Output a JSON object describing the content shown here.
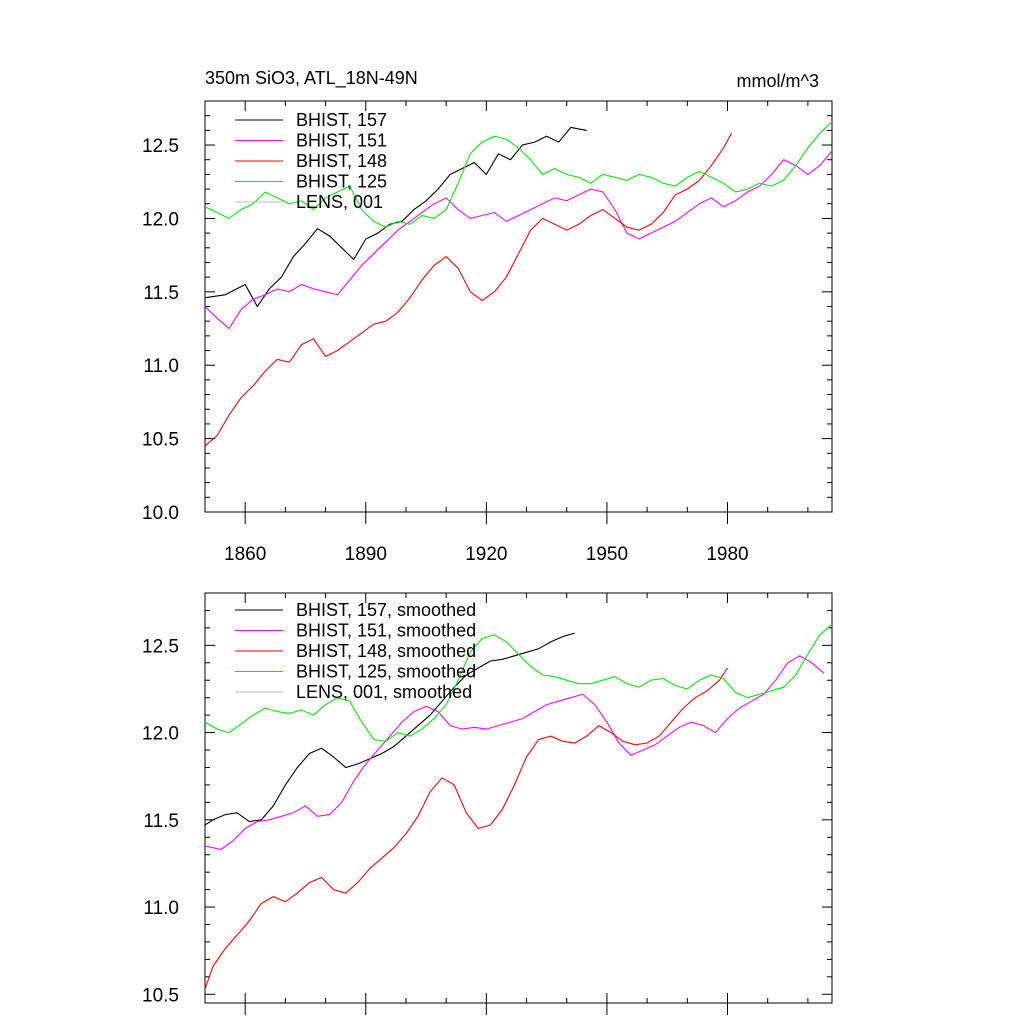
{
  "figure": {
    "title_left": "350m SiO3, ATL_18N-49N",
    "title_right": "mmol/m^3"
  },
  "chart_data": [
    {
      "type": "line",
      "title": "350m SiO3, ATL_18N-49N",
      "units": "mmol/m^3",
      "xlim": [
        1850,
        2006
      ],
      "ylim": [
        10.0,
        12.8
      ],
      "xticks": [
        1860,
        1890,
        1920,
        1950,
        1980
      ],
      "yticks": [
        10.0,
        10.5,
        11.0,
        11.5,
        12.0,
        12.5
      ],
      "legend_position": "top-left",
      "series": [
        {
          "name": "BHIST, 157",
          "color": "#000000",
          "x": [
            1850,
            1855,
            1860,
            1863,
            1866,
            1869,
            1872,
            1875,
            1878,
            1881,
            1884,
            1887,
            1890,
            1893,
            1896,
            1899,
            1902,
            1905,
            1908,
            1911,
            1914,
            1917,
            1920,
            1923,
            1926,
            1929,
            1932,
            1935,
            1938,
            1941,
            1945
          ],
          "y": [
            11.46,
            11.48,
            11.55,
            11.4,
            11.52,
            11.6,
            11.74,
            11.83,
            11.93,
            11.88,
            11.8,
            11.72,
            11.86,
            11.9,
            11.96,
            11.98,
            12.06,
            12.12,
            12.2,
            12.3,
            12.34,
            12.38,
            12.3,
            12.44,
            12.4,
            12.5,
            12.52,
            12.56,
            12.52,
            12.62,
            12.6
          ]
        },
        {
          "name": "BHIST, 151",
          "color": "#ff00ff",
          "x": [
            1850,
            1853,
            1856,
            1859,
            1862,
            1865,
            1868,
            1871,
            1874,
            1877,
            1880,
            1883,
            1886,
            1889,
            1892,
            1895,
            1898,
            1901,
            1904,
            1907,
            1910,
            1913,
            1916,
            1919,
            1922,
            1925,
            1928,
            1931,
            1934,
            1937,
            1940,
            1943,
            1946,
            1949,
            1952,
            1955,
            1958,
            1961,
            1964,
            1967,
            1970,
            1973,
            1976,
            1979,
            1982,
            1985,
            1988,
            1991,
            1994,
            1997,
            2000,
            2003,
            2006
          ],
          "y": [
            11.4,
            11.32,
            11.25,
            11.38,
            11.45,
            11.48,
            11.52,
            11.5,
            11.55,
            11.52,
            11.5,
            11.48,
            11.58,
            11.68,
            11.76,
            11.84,
            11.92,
            11.98,
            12.04,
            12.1,
            12.14,
            12.06,
            12.0,
            12.02,
            12.04,
            11.98,
            12.02,
            12.06,
            12.1,
            12.14,
            12.12,
            12.16,
            12.2,
            12.18,
            12.06,
            11.9,
            11.86,
            11.9,
            11.94,
            11.98,
            12.04,
            12.1,
            12.14,
            12.08,
            12.12,
            12.18,
            12.22,
            12.3,
            12.4,
            12.36,
            12.3,
            12.36,
            12.46
          ]
        },
        {
          "name": "BHIST, 148",
          "color": "#ff0000",
          "x": [
            1850,
            1853,
            1856,
            1859,
            1862,
            1865,
            1868,
            1871,
            1874,
            1877,
            1880,
            1883,
            1886,
            1889,
            1892,
            1895,
            1898,
            1901,
            1904,
            1907,
            1910,
            1913,
            1916,
            1919,
            1922,
            1925,
            1928,
            1931,
            1934,
            1937,
            1940,
            1943,
            1946,
            1949,
            1952,
            1955,
            1958,
            1961,
            1964,
            1967,
            1970,
            1973,
            1976,
            1979,
            1981
          ],
          "y": [
            10.45,
            10.52,
            10.66,
            10.78,
            10.86,
            10.96,
            11.04,
            11.02,
            11.14,
            11.18,
            11.06,
            11.1,
            11.16,
            11.22,
            11.28,
            11.3,
            11.36,
            11.46,
            11.58,
            11.68,
            11.74,
            11.66,
            11.5,
            11.44,
            11.5,
            11.6,
            11.76,
            11.92,
            12.0,
            11.96,
            11.92,
            11.96,
            12.02,
            12.06,
            12.0,
            11.94,
            11.92,
            11.96,
            12.04,
            12.16,
            12.2,
            12.26,
            12.36,
            12.48,
            12.58
          ]
        },
        {
          "name": "BHIST, 125",
          "color": "#00ee00",
          "x": [
            1850,
            1853,
            1856,
            1859,
            1862,
            1865,
            1868,
            1871,
            1874,
            1877,
            1880,
            1883,
            1886,
            1889,
            1892,
            1895,
            1898,
            1901,
            1904,
            1907,
            1910,
            1913,
            1916,
            1919,
            1922,
            1925,
            1928,
            1931,
            1934,
            1937,
            1940,
            1943,
            1946,
            1949,
            1952,
            1955,
            1958,
            1961,
            1964,
            1967,
            1970,
            1973,
            1976,
            1979,
            1982,
            1985,
            1988,
            1991,
            1994,
            1997,
            2000,
            2003,
            2006
          ],
          "y": [
            12.08,
            12.04,
            12.0,
            12.06,
            12.1,
            12.18,
            12.14,
            12.1,
            12.12,
            12.06,
            12.14,
            12.18,
            12.22,
            12.06,
            11.98,
            11.94,
            11.98,
            11.96,
            12.02,
            12.0,
            12.06,
            12.24,
            12.44,
            12.52,
            12.56,
            12.54,
            12.48,
            12.4,
            12.3,
            12.34,
            12.3,
            12.28,
            12.24,
            12.3,
            12.28,
            12.26,
            12.3,
            12.28,
            12.24,
            12.22,
            12.28,
            12.32,
            12.28,
            12.24,
            12.18,
            12.2,
            12.24,
            12.22,
            12.26,
            12.36,
            12.48,
            12.58,
            12.66
          ]
        },
        {
          "name": "LENS, 001",
          "color": "#bbbbbb",
          "x": [],
          "y": []
        }
      ]
    },
    {
      "type": "line",
      "xlim": [
        1850,
        2006
      ],
      "ylim": [
        10.45,
        12.8
      ],
      "xticks": [
        1860,
        1890,
        1920,
        1950,
        1980
      ],
      "yticks": [
        10.5,
        11.0,
        11.5,
        12.0,
        12.5
      ],
      "legend_position": "top-left",
      "series": [
        {
          "name": "BHIST, 157, smoothed",
          "color": "#000000",
          "x": [
            1850,
            1852,
            1855,
            1858,
            1861,
            1864,
            1867,
            1870,
            1873,
            1876,
            1879,
            1882,
            1885,
            1888,
            1891,
            1894,
            1897,
            1900,
            1903,
            1906,
            1909,
            1912,
            1915,
            1918,
            1921,
            1924,
            1927,
            1930,
            1933,
            1936,
            1939,
            1942
          ],
          "y": [
            11.47,
            11.5,
            11.53,
            11.54,
            11.49,
            11.5,
            11.58,
            11.7,
            11.8,
            11.88,
            11.91,
            11.86,
            11.8,
            11.82,
            11.85,
            11.88,
            11.92,
            11.98,
            12.04,
            12.1,
            12.18,
            12.26,
            12.33,
            12.37,
            12.41,
            12.42,
            12.44,
            12.46,
            12.48,
            12.52,
            12.55,
            12.57
          ]
        },
        {
          "name": "BHIST, 151, smoothed",
          "color": "#ff00ff",
          "x": [
            1850,
            1852,
            1854,
            1857,
            1860,
            1863,
            1866,
            1869,
            1872,
            1875,
            1878,
            1881,
            1884,
            1887,
            1890,
            1893,
            1896,
            1899,
            1902,
            1905,
            1908,
            1911,
            1914,
            1917,
            1920,
            1923,
            1926,
            1929,
            1932,
            1935,
            1938,
            1941,
            1944,
            1947,
            1950,
            1953,
            1956,
            1959,
            1962,
            1965,
            1968,
            1971,
            1974,
            1977,
            1980,
            1983,
            1986,
            1989,
            1992,
            1995,
            1998,
            2001,
            2004
          ],
          "y": [
            11.35,
            11.34,
            11.33,
            11.38,
            11.45,
            11.49,
            11.5,
            11.52,
            11.54,
            11.58,
            11.52,
            11.53,
            11.6,
            11.72,
            11.82,
            11.9,
            11.98,
            12.06,
            12.12,
            12.15,
            12.12,
            12.04,
            12.02,
            12.03,
            12.02,
            12.04,
            12.06,
            12.08,
            12.12,
            12.16,
            12.18,
            12.2,
            12.22,
            12.16,
            12.06,
            11.94,
            11.87,
            11.9,
            11.93,
            11.98,
            12.03,
            12.06,
            12.04,
            12.0,
            12.08,
            12.14,
            12.18,
            12.22,
            12.3,
            12.4,
            12.44,
            12.4,
            12.34
          ]
        },
        {
          "name": "BHIST, 148, smoothed",
          "color": "#ff0000",
          "x": [
            1850,
            1852,
            1855,
            1858,
            1861,
            1864,
            1867,
            1870,
            1873,
            1876,
            1879,
            1882,
            1885,
            1888,
            1891,
            1894,
            1897,
            1900,
            1903,
            1906,
            1909,
            1912,
            1915,
            1918,
            1921,
            1924,
            1927,
            1930,
            1933,
            1936,
            1939,
            1942,
            1945,
            1948,
            1951,
            1954,
            1957,
            1960,
            1963,
            1966,
            1969,
            1972,
            1975,
            1978,
            1980
          ],
          "y": [
            10.53,
            10.66,
            10.76,
            10.84,
            10.92,
            11.02,
            11.06,
            11.03,
            11.08,
            11.14,
            11.17,
            11.1,
            11.08,
            11.14,
            11.22,
            11.28,
            11.34,
            11.42,
            11.52,
            11.66,
            11.74,
            11.7,
            11.54,
            11.45,
            11.47,
            11.56,
            11.7,
            11.86,
            11.96,
            11.98,
            11.95,
            11.94,
            11.98,
            12.04,
            12.0,
            11.95,
            11.93,
            11.94,
            11.98,
            12.06,
            12.14,
            12.2,
            12.24,
            12.3,
            12.37
          ]
        },
        {
          "name": "BHIST, 125, smoothed",
          "color": "#00ee00",
          "x": [
            1850,
            1853,
            1856,
            1859,
            1862,
            1865,
            1868,
            1871,
            1874,
            1877,
            1880,
            1883,
            1886,
            1889,
            1892,
            1895,
            1898,
            1901,
            1904,
            1907,
            1910,
            1913,
            1916,
            1919,
            1922,
            1925,
            1928,
            1931,
            1934,
            1937,
            1940,
            1943,
            1946,
            1949,
            1952,
            1955,
            1958,
            1961,
            1964,
            1967,
            1970,
            1973,
            1976,
            1979,
            1982,
            1985,
            1988,
            1991,
            1994,
            1997,
            2000,
            2003,
            2006
          ],
          "y": [
            12.06,
            12.02,
            12.0,
            12.05,
            12.1,
            12.14,
            12.12,
            12.11,
            12.13,
            12.1,
            12.16,
            12.2,
            12.18,
            12.06,
            11.96,
            11.95,
            12.0,
            11.98,
            12.02,
            12.08,
            12.16,
            12.3,
            12.46,
            12.54,
            12.56,
            12.52,
            12.45,
            12.38,
            12.33,
            12.32,
            12.3,
            12.28,
            12.28,
            12.3,
            12.32,
            12.28,
            12.26,
            12.3,
            12.31,
            12.27,
            12.25,
            12.3,
            12.33,
            12.31,
            12.23,
            12.2,
            12.22,
            12.24,
            12.26,
            12.33,
            12.45,
            12.56,
            12.62
          ]
        },
        {
          "name": "LENS, 001, smoothed",
          "color": "#bbbbbb",
          "x": [],
          "y": []
        }
      ]
    }
  ]
}
